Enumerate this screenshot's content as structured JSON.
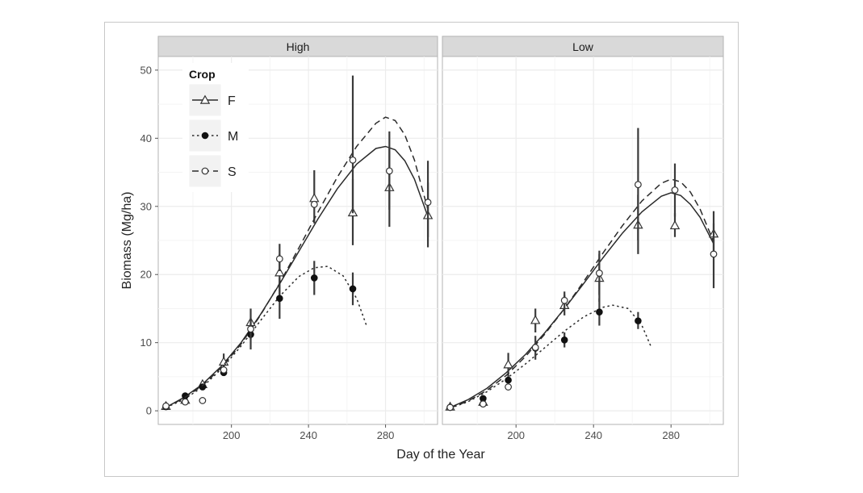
{
  "chart_data": {
    "type": "scatter",
    "xlabel": "Day of the Year",
    "ylabel": "Biomass (Mg/ha)",
    "xlim": [
      162,
      307
    ],
    "ylim": [
      -2,
      52
    ],
    "xticks": [
      200,
      240,
      280
    ],
    "yticks": [
      0,
      10,
      20,
      30,
      40,
      50
    ],
    "grid": true,
    "legend": {
      "title": "Crop",
      "placement": "top-left inside first panel",
      "entries": [
        {
          "label": "F",
          "marker": "triangle-open",
          "line": "solid"
        },
        {
          "label": "M",
          "marker": "circle-filled",
          "line": "dotted"
        },
        {
          "label": "S",
          "marker": "circle-open",
          "line": "dashed"
        }
      ]
    },
    "colors": {
      "strip": "#d9d9d9",
      "panel_border": "#b3b3b3",
      "grid": "#ececec",
      "ink": "#333333"
    },
    "panels": [
      {
        "title": "High",
        "series": [
          {
            "name": "F",
            "marker": "triangle-open",
            "points": [
              {
                "x": 166,
                "y": 0.7
              },
              {
                "x": 176,
                "y": 1.6
              },
              {
                "x": 185,
                "y": 3.9
              },
              {
                "x": 196,
                "y": 7.2,
                "lo": 6.0,
                "hi": 8.4
              },
              {
                "x": 210,
                "y": 13.0,
                "lo": 11.0,
                "hi": 15.0
              },
              {
                "x": 225,
                "y": 20.3,
                "lo": 17.0,
                "hi": 23.0
              },
              {
                "x": 243,
                "y": 31.2,
                "lo": 27.5,
                "hi": 35.3
              },
              {
                "x": 263,
                "y": 29.1,
                "lo": 24.3,
                "hi": 34.0
              },
              {
                "x": 282,
                "y": 32.8,
                "lo": 27.0,
                "hi": 38.5
              },
              {
                "x": 302,
                "y": 28.7,
                "lo": 24.0,
                "hi": 33.5
              }
            ],
            "fit": {
              "style": "solid",
              "x": [
                166,
                175,
                185,
                195,
                205,
                215,
                225,
                235,
                245,
                255,
                265,
                275,
                280,
                285,
                290,
                295,
                302
              ],
              "y": [
                0.5,
                1.9,
                3.9,
                6.6,
                10.0,
                14.1,
                18.6,
                23.4,
                28.2,
                32.6,
                36.2,
                38.5,
                38.8,
                38.3,
                36.7,
                34.0,
                28.5
              ]
            }
          },
          {
            "name": "M",
            "marker": "circle-filled",
            "points": [
              {
                "x": 166,
                "y": 0.6
              },
              {
                "x": 176,
                "y": 2.2
              },
              {
                "x": 185,
                "y": 3.5
              },
              {
                "x": 196,
                "y": 5.6
              },
              {
                "x": 210,
                "y": 11.2,
                "lo": 9.0,
                "hi": 13.5
              },
              {
                "x": 225,
                "y": 16.5,
                "lo": 13.5,
                "hi": 19.5
              },
              {
                "x": 243,
                "y": 19.5,
                "lo": 17.0,
                "hi": 22.0
              },
              {
                "x": 263,
                "y": 17.9,
                "lo": 15.5,
                "hi": 20.3
              }
            ],
            "fit": {
              "style": "dotted",
              "x": [
                166,
                175,
                185,
                195,
                205,
                215,
                225,
                235,
                243,
                250,
                258,
                265,
                270
              ],
              "y": [
                0.5,
                1.6,
                3.5,
                6.2,
                9.5,
                13.2,
                16.8,
                19.7,
                21.0,
                21.2,
                19.8,
                16.5,
                12.6
              ]
            }
          },
          {
            "name": "S",
            "marker": "circle-open",
            "points": [
              {
                "x": 166,
                "y": 0.7
              },
              {
                "x": 176,
                "y": 1.3
              },
              {
                "x": 185,
                "y": 1.5
              },
              {
                "x": 196,
                "y": 6.0
              },
              {
                "x": 210,
                "y": 12.0,
                "lo": 10.5,
                "hi": 13.5
              },
              {
                "x": 225,
                "y": 22.3,
                "lo": 20.5,
                "hi": 24.5
              },
              {
                "x": 243,
                "y": 30.3
              },
              {
                "x": 263,
                "y": 36.8,
                "lo": 29.0,
                "hi": 49.2
              },
              {
                "x": 282,
                "y": 35.2,
                "lo": 29.5,
                "hi": 41.0
              },
              {
                "x": 302,
                "y": 30.6,
                "lo": 25.5,
                "hi": 36.7
              }
            ],
            "fit": {
              "style": "dashed",
              "x": [
                166,
                175,
                185,
                195,
                205,
                215,
                225,
                235,
                245,
                255,
                265,
                275,
                280,
                285,
                290,
                295,
                302
              ],
              "y": [
                0.5,
                1.8,
                3.7,
                6.4,
                9.8,
                14.0,
                18.7,
                23.9,
                29.2,
                34.3,
                38.8,
                42.2,
                43.1,
                42.6,
                40.5,
                36.8,
                29.5
              ]
            }
          }
        ]
      },
      {
        "title": "Low",
        "series": [
          {
            "name": "F",
            "marker": "triangle-open",
            "points": [
              {
                "x": 166,
                "y": 0.6
              },
              {
                "x": 183,
                "y": 1.3
              },
              {
                "x": 196,
                "y": 6.8,
                "lo": 5.0,
                "hi": 8.5
              },
              {
                "x": 210,
                "y": 13.3,
                "lo": 11.5,
                "hi": 15.0
              },
              {
                "x": 225,
                "y": 15.5,
                "lo": 14.0,
                "hi": 17.0
              },
              {
                "x": 243,
                "y": 19.5,
                "lo": 16.0,
                "hi": 23.5
              },
              {
                "x": 263,
                "y": 27.3,
                "lo": 23.0,
                "hi": 31.7
              },
              {
                "x": 282,
                "y": 27.2,
                "lo": 25.5,
                "hi": 29.0
              },
              {
                "x": 302,
                "y": 26.0,
                "lo": 22.5,
                "hi": 29.3
              }
            ],
            "fit": {
              "style": "solid",
              "x": [
                166,
                175,
                185,
                195,
                205,
                215,
                225,
                235,
                245,
                255,
                265,
                275,
                280,
                285,
                290,
                295,
                302
              ],
              "y": [
                0.5,
                1.6,
                3.3,
                5.6,
                8.3,
                11.5,
                15.0,
                18.7,
                22.5,
                26.1,
                29.2,
                31.5,
                32.0,
                31.6,
                30.3,
                28.4,
                24.5
              ]
            }
          },
          {
            "name": "M",
            "marker": "circle-filled",
            "points": [
              {
                "x": 166,
                "y": 0.5
              },
              {
                "x": 183,
                "y": 1.8
              },
              {
                "x": 196,
                "y": 4.5
              },
              {
                "x": 210,
                "y": 9.2,
                "lo": 7.5,
                "hi": 11.0
              },
              {
                "x": 225,
                "y": 10.4,
                "lo": 9.3,
                "hi": 11.5
              },
              {
                "x": 243,
                "y": 14.5,
                "lo": 12.5,
                "hi": 16.5
              },
              {
                "x": 263,
                "y": 13.2,
                "lo": 12.0,
                "hi": 14.5
              }
            ],
            "fit": {
              "style": "dotted",
              "x": [
                166,
                175,
                185,
                195,
                205,
                215,
                225,
                235,
                245,
                250,
                258,
                265,
                270
              ],
              "y": [
                0.4,
                1.3,
                2.8,
                4.7,
                6.9,
                9.3,
                11.7,
                13.8,
                15.2,
                15.5,
                15.0,
                12.5,
                9.2
              ]
            }
          },
          {
            "name": "S",
            "marker": "circle-open",
            "points": [
              {
                "x": 166,
                "y": 0.5
              },
              {
                "x": 183,
                "y": 1.0
              },
              {
                "x": 196,
                "y": 3.5
              },
              {
                "x": 210,
                "y": 9.3
              },
              {
                "x": 225,
                "y": 16.2,
                "lo": 15.0,
                "hi": 17.5
              },
              {
                "x": 243,
                "y": 20.2,
                "lo": 17.0,
                "hi": 23.0
              },
              {
                "x": 263,
                "y": 33.2,
                "lo": 25.0,
                "hi": 41.5
              },
              {
                "x": 282,
                "y": 32.4,
                "lo": 28.5,
                "hi": 36.3
              },
              {
                "x": 302,
                "y": 23.0,
                "lo": 18.0,
                "hi": 27.5
              }
            ],
            "fit": {
              "style": "dashed",
              "x": [
                166,
                175,
                185,
                195,
                205,
                215,
                225,
                235,
                245,
                255,
                265,
                275,
                280,
                285,
                290,
                295,
                302
              ],
              "y": [
                0.4,
                1.4,
                3.0,
                5.2,
                8.0,
                11.3,
                15.0,
                19.0,
                23.2,
                27.2,
                30.8,
                33.4,
                34.0,
                33.6,
                32.1,
                29.6,
                24.8
              ]
            }
          }
        ]
      }
    ]
  }
}
